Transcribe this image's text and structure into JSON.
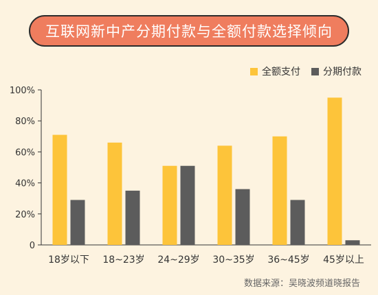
{
  "chart_data": {
    "type": "bar",
    "title": "互联网新中产分期付款与全额付款选择倾向",
    "categories": [
      "18岁以下",
      "18~23岁",
      "24~29岁",
      "30~35岁",
      "36~45岁",
      "45岁以上"
    ],
    "series": [
      {
        "name": "全额支付",
        "values": [
          71,
          66,
          51,
          64,
          70,
          95
        ],
        "color": "#fdc43a"
      },
      {
        "name": "分期付款",
        "values": [
          29,
          35,
          51,
          36,
          29,
          3
        ],
        "color": "#5c5c5c"
      }
    ],
    "yticks": [
      "0",
      "20%",
      "40%",
      "60%",
      "80%",
      "100%"
    ],
    "ylim": [
      0,
      100
    ],
    "legend_position": "top-right",
    "source": "数据来源：吴晓波频道晓报告"
  }
}
